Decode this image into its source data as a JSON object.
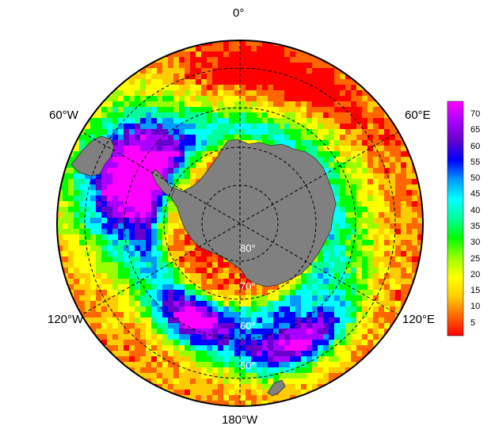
{
  "map": {
    "projection": "south polar stereographic",
    "longitude_labels": [
      "0°",
      "60°E",
      "120°E",
      "180°W",
      "120°W",
      "60°W"
    ],
    "latitude_labels": [
      "80°",
      "70°",
      "60°",
      "50°"
    ],
    "land_color": "#808080",
    "graticule": "dashed"
  },
  "colorbar": {
    "ticks": [
      "70",
      "65",
      "60",
      "55",
      "50",
      "45",
      "40",
      "35",
      "30",
      "25",
      "20",
      "15",
      "10",
      "5"
    ],
    "range": [
      0,
      75
    ],
    "colors": [
      "#ff0000",
      "#ff6600",
      "#ffcc00",
      "#ffff00",
      "#99ff00",
      "#00ff00",
      "#00ff99",
      "#00ffff",
      "#0099ff",
      "#0000ff",
      "#6600cc",
      "#aa00ff",
      "#ff00ff"
    ]
  }
}
